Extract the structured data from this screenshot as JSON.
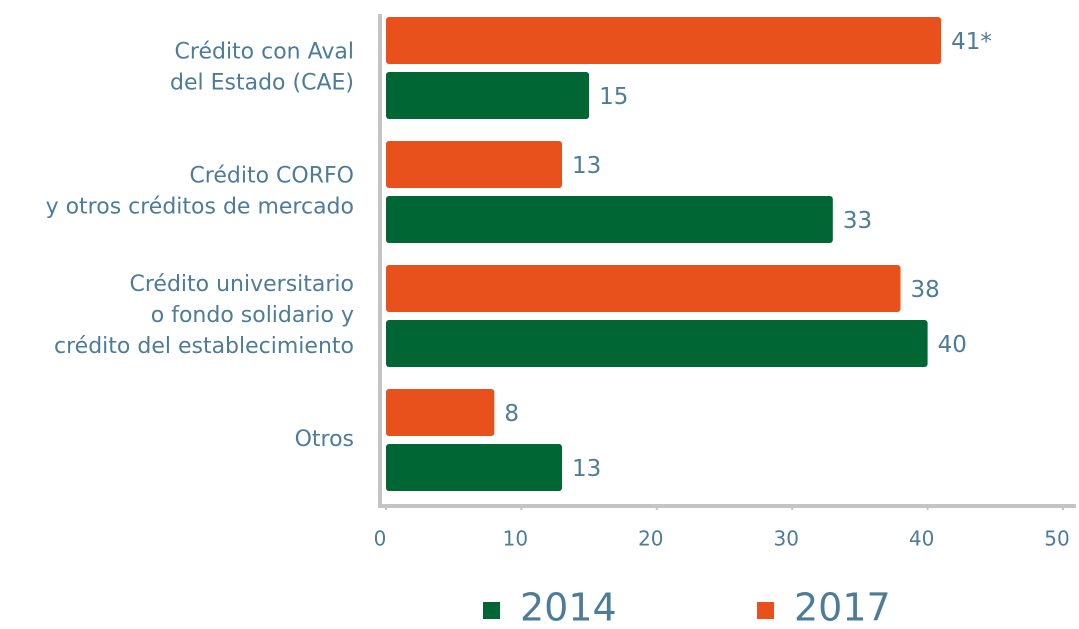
{
  "chart_data": {
    "type": "bar",
    "orientation": "horizontal",
    "categories": [
      [
        "Crédito con Aval",
        "del Estado (CAE)"
      ],
      [
        "Crédito CORFO",
        "y otros créditos de mercado"
      ],
      [
        "Crédito universitario",
        "o fondo solidario y",
        "crédito del establecimiento"
      ],
      [
        "Otros"
      ]
    ],
    "series": [
      {
        "name": "2014",
        "color": "#006633",
        "values": [
          15,
          33,
          40,
          13
        ]
      },
      {
        "name": "2017",
        "color": "#e8501c",
        "values": [
          41,
          13,
          38,
          8
        ],
        "value_labels": [
          "41*",
          "13",
          "38",
          "8"
        ]
      }
    ],
    "xlim": [
      0,
      50
    ],
    "xticks": [
      0,
      10,
      20,
      30,
      40,
      50
    ],
    "grid": false,
    "legend": "bottom"
  }
}
